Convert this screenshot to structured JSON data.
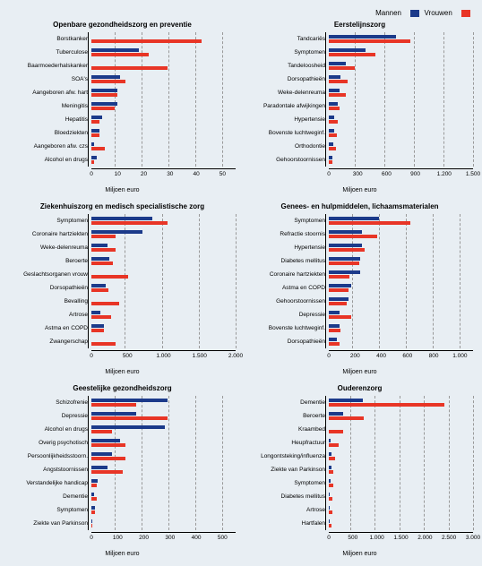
{
  "colors": {
    "men": "#1b3a8a",
    "women": "#e83526",
    "grid": "#999999",
    "bg": "#e8eef3"
  },
  "legend": {
    "men": "Mannen",
    "women": "Vrouwen"
  },
  "xlabel": "Miljoen euro",
  "panels": [
    {
      "title": "Openbare gezondheidszorg en preventie",
      "xmax": 55,
      "xstep": 10,
      "rows": [
        {
          "label": "Borstkanker",
          "m": 0,
          "f": 42
        },
        {
          "label": "Tuberculose",
          "m": 18,
          "f": 22
        },
        {
          "label": "Baarmoederhalskanker",
          "m": 0,
          "f": 29
        },
        {
          "label": "SOA's",
          "m": 11,
          "f": 13
        },
        {
          "label": "Aangeboren afw. hart",
          "m": 10,
          "f": 10
        },
        {
          "label": "Meningitis",
          "m": 10,
          "f": 9
        },
        {
          "label": "Hepatitis",
          "m": 4,
          "f": 3
        },
        {
          "label": "Bloedziekten",
          "m": 3,
          "f": 3
        },
        {
          "label": "Aangeboren afw. czs",
          "m": 1,
          "f": 5
        },
        {
          "label": "Alcohol en drugs",
          "m": 2,
          "f": 1
        }
      ]
    },
    {
      "title": "Eerstelijnszorg",
      "xmax": 1500,
      "xstep": 300,
      "rows": [
        {
          "label": "Tandcariës",
          "m": 700,
          "f": 850
        },
        {
          "label": "Symptomen",
          "m": 380,
          "f": 480
        },
        {
          "label": "Tandeloosheid",
          "m": 180,
          "f": 270
        },
        {
          "label": "Dorsopathieën",
          "m": 120,
          "f": 200
        },
        {
          "label": "Weke-delenreuma",
          "m": 110,
          "f": 180
        },
        {
          "label": "Paradontale afwijkingen",
          "m": 90,
          "f": 110
        },
        {
          "label": "Hypertensie",
          "m": 60,
          "f": 90
        },
        {
          "label": "Bovenste luchtweginf.",
          "m": 60,
          "f": 80
        },
        {
          "label": "Orthodontie",
          "m": 50,
          "f": 70
        },
        {
          "label": "Gehoorstoornissen",
          "m": 40,
          "f": 40
        }
      ]
    },
    {
      "title": "Ziekenhuiszorg en medisch specialistische zorg",
      "xmax": 2000,
      "xstep": 500,
      "rows": [
        {
          "label": "Symptomen",
          "m": 850,
          "f": 1050
        },
        {
          "label": "Coronaire hartziekten",
          "m": 710,
          "f": 330
        },
        {
          "label": "Weke-delenreuma",
          "m": 220,
          "f": 340
        },
        {
          "label": "Beroerte",
          "m": 250,
          "f": 300
        },
        {
          "label": "Geslachtsorganen vrouw",
          "m": 0,
          "f": 510
        },
        {
          "label": "Dorsopathieën",
          "m": 200,
          "f": 240
        },
        {
          "label": "Bevalling",
          "m": 0,
          "f": 380
        },
        {
          "label": "Artrose",
          "m": 130,
          "f": 270
        },
        {
          "label": "Astma en COPD",
          "m": 180,
          "f": 180
        },
        {
          "label": "Zwangerschap",
          "m": 0,
          "f": 330
        }
      ]
    },
    {
      "title": "Genees- en hulpmiddelen, lichaamsmaterialen",
      "xmax": 1100,
      "xstep": 200,
      "rows": [
        {
          "label": "Symptomen",
          "m": 380,
          "f": 620
        },
        {
          "label": "Refractie stoornis",
          "m": 250,
          "f": 370
        },
        {
          "label": "Hypertensie",
          "m": 250,
          "f": 270
        },
        {
          "label": "Diabetes mellitus",
          "m": 240,
          "f": 230
        },
        {
          "label": "Coronaire hartziekten",
          "m": 240,
          "f": 160
        },
        {
          "label": "Astma en COPD",
          "m": 170,
          "f": 150
        },
        {
          "label": "Gehoorstoornissen",
          "m": 150,
          "f": 140
        },
        {
          "label": "Depressie",
          "m": 80,
          "f": 170
        },
        {
          "label": "Bovenste luchtweginf.",
          "m": 80,
          "f": 90
        },
        {
          "label": "Dorsopathieën",
          "m": 60,
          "f": 80
        }
      ]
    },
    {
      "title": "Geestelijke gezondheidszorg",
      "xmax": 550,
      "xstep": 100,
      "rows": [
        {
          "label": "Schizofrenie",
          "m": 290,
          "f": 170
        },
        {
          "label": "Depressie",
          "m": 170,
          "f": 290
        },
        {
          "label": "Alcohol en drugs",
          "m": 280,
          "f": 80
        },
        {
          "label": "Overig psychotisch",
          "m": 110,
          "f": 130
        },
        {
          "label": "Persoonlijkheidsstoorn.",
          "m": 80,
          "f": 130
        },
        {
          "label": "Angststoornissen",
          "m": 60,
          "f": 120
        },
        {
          "label": "Verstandelijke handicap",
          "m": 25,
          "f": 20
        },
        {
          "label": "Dementie",
          "m": 10,
          "f": 20
        },
        {
          "label": "Symptomen",
          "m": 12,
          "f": 15
        },
        {
          "label": "Ziekte van Parkinson",
          "m": 2,
          "f": 3
        }
      ]
    },
    {
      "title": "Ouderenzorg",
      "xmax": 3000,
      "xstep": 500,
      "rows": [
        {
          "label": "Dementie",
          "m": 700,
          "f": 2400
        },
        {
          "label": "Beroerte",
          "m": 300,
          "f": 720
        },
        {
          "label": "Kraambed",
          "m": 0,
          "f": 300
        },
        {
          "label": "Heupfractuur",
          "m": 40,
          "f": 200
        },
        {
          "label": "Longontsteking/influenza",
          "m": 50,
          "f": 130
        },
        {
          "label": "Ziekte van Parkinson",
          "m": 50,
          "f": 90
        },
        {
          "label": "Symptomen",
          "m": 30,
          "f": 90
        },
        {
          "label": "Diabetes mellitus",
          "m": 25,
          "f": 80
        },
        {
          "label": "Artrose",
          "m": 10,
          "f": 80
        },
        {
          "label": "Hartfalen",
          "m": 20,
          "f": 65
        }
      ]
    }
  ]
}
